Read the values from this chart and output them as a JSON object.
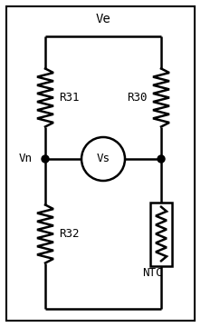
{
  "fig_width": 2.22,
  "fig_height": 3.6,
  "dpi": 100,
  "bg_color": "#ffffff",
  "line_color": "#000000",
  "line_width": 1.8,
  "title": "Ve",
  "label_Vn": "Vn",
  "label_Vs": "Vs",
  "label_R31": "R31",
  "label_R30": "R30",
  "label_R32": "R32",
  "label_NTC": "NTC",
  "border_lw": 1.5,
  "font_size": 9
}
